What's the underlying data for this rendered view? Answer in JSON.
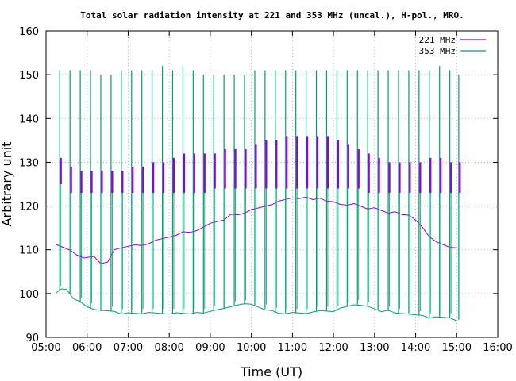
{
  "chart_data": {
    "type": "line",
    "title": "Total solar radiation intensity at 221 and 353 MHz (uncal.), H-pol., MRO.",
    "xlabel": "Time (UT)",
    "ylabel": "Arbitrary unit",
    "xlim": [
      "05:00",
      "16:00"
    ],
    "ylim": [
      90,
      160
    ],
    "xticks": [
      "05:00",
      "06:00",
      "07:00",
      "08:00",
      "09:00",
      "10:00",
      "11:00",
      "12:00",
      "13:00",
      "14:00",
      "15:00",
      "16:00"
    ],
    "yticks": [
      "90",
      "100",
      "110",
      "120",
      "130",
      "140",
      "150",
      "160"
    ],
    "grid": true,
    "legend_position": "top-right",
    "series": [
      {
        "name": "221 MHz",
        "color": "#9400d3",
        "x": [
          "05:15",
          "05:25",
          "05:35",
          "05:45",
          "05:55",
          "06:10",
          "06:20",
          "06:30",
          "06:40",
          "06:50",
          "07:00",
          "07:10",
          "07:20",
          "07:30",
          "07:40",
          "07:50",
          "08:00",
          "08:10",
          "08:20",
          "08:30",
          "08:40",
          "08:50",
          "09:00",
          "09:10",
          "09:20",
          "09:30",
          "09:40",
          "09:50",
          "10:00",
          "10:10",
          "10:20",
          "10:30",
          "10:40",
          "10:50",
          "11:00",
          "11:10",
          "11:20",
          "11:30",
          "11:40",
          "11:50",
          "12:00",
          "12:10",
          "12:20",
          "12:30",
          "12:40",
          "12:50",
          "13:00",
          "13:10",
          "13:20",
          "13:30",
          "13:40",
          "13:50",
          "14:00",
          "14:10",
          "14:20",
          "14:30",
          "14:40",
          "14:50",
          "15:00"
        ],
        "y": [
          111,
          110.5,
          110,
          109,
          108,
          108.5,
          107,
          107,
          110,
          110.5,
          111,
          111,
          111,
          111.5,
          112,
          112.5,
          113,
          113.5,
          114,
          114,
          114.5,
          115,
          116,
          116.5,
          117,
          118,
          118,
          118.5,
          119,
          119.5,
          120,
          120.5,
          121,
          121.5,
          122,
          121.5,
          122,
          121.5,
          122,
          121,
          121,
          120.5,
          120,
          120.5,
          120,
          119.5,
          119.5,
          119,
          118.5,
          118.5,
          118,
          118,
          117,
          115,
          113,
          112,
          111,
          110.5,
          110.5
        ]
      },
      {
        "name": "353 MHz",
        "color": "#009e73",
        "x": [
          "05:15",
          "05:22",
          "05:30",
          "05:40",
          "05:50",
          "06:00",
          "06:10",
          "06:20",
          "06:30",
          "06:40",
          "06:50",
          "07:00",
          "07:10",
          "07:20",
          "07:30",
          "07:40",
          "07:50",
          "08:00",
          "08:10",
          "08:20",
          "08:30",
          "08:40",
          "08:50",
          "09:00",
          "09:10",
          "09:20",
          "09:30",
          "09:40",
          "09:50",
          "10:00",
          "10:10",
          "10:20",
          "10:30",
          "10:40",
          "10:50",
          "11:00",
          "11:10",
          "11:20",
          "11:30",
          "11:40",
          "11:50",
          "12:00",
          "12:10",
          "12:20",
          "12:30",
          "12:40",
          "12:50",
          "13:00",
          "13:10",
          "13:20",
          "13:30",
          "13:40",
          "13:50",
          "14:00",
          "14:10",
          "14:20",
          "14:30",
          "14:40",
          "14:50",
          "15:00"
        ],
        "y": [
          100,
          101,
          101,
          99,
          98,
          97,
          96.5,
          96,
          96,
          96,
          95.5,
          95.5,
          95.5,
          95.5,
          95.5,
          95.5,
          95.5,
          95.5,
          95.5,
          95.5,
          95.5,
          95.5,
          95.5,
          96,
          96.5,
          96.5,
          97,
          97.5,
          97.5,
          97.5,
          97,
          96.5,
          96,
          95.5,
          95.5,
          95.5,
          95.5,
          95.5,
          96,
          96,
          96,
          96,
          96.5,
          97,
          97.5,
          97.5,
          97,
          96.5,
          96,
          96,
          95.5,
          95.5,
          95.5,
          95,
          95,
          94.5,
          94.5,
          94.5,
          94.5,
          94
        ]
      }
    ],
    "calibration_spikes": {
      "times": [
        "05:20",
        "05:35",
        "05:50",
        "06:05",
        "06:20",
        "06:35",
        "06:50",
        "07:05",
        "07:20",
        "07:35",
        "07:50",
        "08:05",
        "08:20",
        "08:35",
        "08:50",
        "09:05",
        "09:20",
        "09:35",
        "09:50",
        "10:05",
        "10:20",
        "10:35",
        "10:50",
        "11:05",
        "11:20",
        "11:35",
        "11:50",
        "12:05",
        "12:20",
        "12:35",
        "12:50",
        "13:05",
        "13:20",
        "13:35",
        "13:50",
        "14:05",
        "14:20",
        "14:35",
        "14:50",
        "15:03"
      ],
      "s353_peak": [
        151,
        151,
        151,
        151,
        150,
        150,
        151,
        151,
        151,
        151,
        152,
        151,
        152,
        151,
        150,
        150,
        150,
        150,
        150,
        151,
        151,
        151,
        151,
        151,
        151,
        151,
        151,
        151,
        151,
        151,
        151,
        151,
        151,
        151,
        151,
        151,
        151,
        152,
        151,
        150
      ],
      "s221_high": [
        131,
        129,
        128,
        128,
        128,
        128,
        128,
        129,
        129,
        130,
        130,
        131,
        132,
        132,
        132,
        132,
        133,
        133,
        133,
        134,
        135,
        135,
        136,
        136,
        136,
        136,
        136,
        135,
        134,
        133,
        132,
        131,
        130,
        130,
        130,
        130,
        131,
        131,
        130,
        130
      ],
      "s221_low": [
        125,
        123,
        123,
        123,
        123,
        123,
        123,
        123,
        123,
        123,
        123,
        123,
        123,
        123,
        123,
        124,
        124,
        124,
        124,
        124,
        124,
        124,
        124,
        124,
        124,
        124,
        124,
        124,
        124,
        124,
        123,
        123,
        123,
        123,
        123,
        123,
        123,
        123,
        123,
        123
      ]
    }
  }
}
